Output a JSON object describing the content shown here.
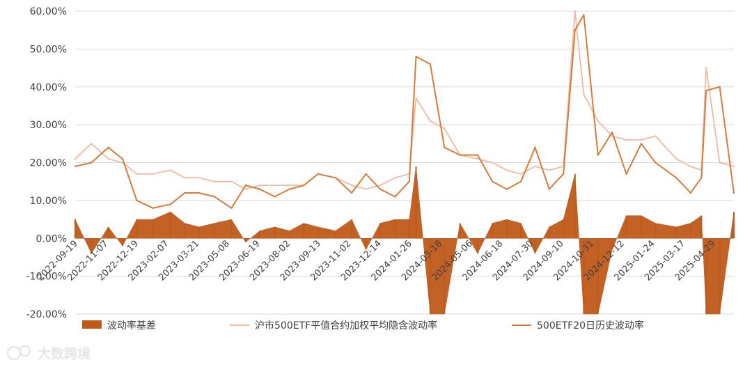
{
  "chart_data": {
    "type": "line",
    "title": "",
    "ylim": [
      -0.2,
      0.6
    ],
    "y_ticks": [
      "-20.00%",
      "-10.00%",
      "0.00%",
      "10.00%",
      "20.00%",
      "30.00%",
      "40.00%",
      "50.00%",
      "60.00%"
    ],
    "y_tick_values": [
      -0.2,
      -0.1,
      0.0,
      0.1,
      0.2,
      0.3,
      0.4,
      0.5,
      0.6
    ],
    "grid": "horizontal",
    "legend": "bottom",
    "x_tick_labels": [
      "2022-09-19",
      "2022-11-07",
      "2022-12-19",
      "2023-02-07",
      "2023-03-21",
      "2023-05-08",
      "2023-06-19",
      "2023-08-02",
      "2023-09-13",
      "2023-11-02",
      "2023-12-14",
      "2024-01-26",
      "2024-03-18",
      "2024-05-06",
      "2024-06-18",
      "2024-07-30",
      "2024-09-10",
      "2024-10-31",
      "2024-12-12",
      "2025-01-24",
      "2025-03-17",
      "2025-04-29"
    ],
    "x": [
      "2022-09-19",
      "2022-10-13",
      "2022-11-07",
      "2022-11-28",
      "2022-12-19",
      "2023-01-12",
      "2023-02-07",
      "2023-02-28",
      "2023-03-21",
      "2023-04-13",
      "2023-05-08",
      "2023-05-29",
      "2023-06-19",
      "2023-07-11",
      "2023-08-02",
      "2023-08-23",
      "2023-09-13",
      "2023-10-09",
      "2023-11-02",
      "2023-11-23",
      "2023-12-14",
      "2024-01-05",
      "2024-01-26",
      "2024-02-05",
      "2024-02-26",
      "2024-03-18",
      "2024-04-10",
      "2024-05-06",
      "2024-05-28",
      "2024-06-18",
      "2024-07-09",
      "2024-07-30",
      "2024-08-20",
      "2024-09-10",
      "2024-09-27",
      "2024-10-10",
      "2024-10-31",
      "2024-11-21",
      "2024-12-12",
      "2025-01-03",
      "2025-01-24",
      "2025-02-24",
      "2025-03-17",
      "2025-04-02",
      "2025-04-09",
      "2025-04-29",
      "2025-05-20"
    ],
    "series": [
      {
        "name": "波动率基差",
        "kind": "area",
        "color": "#c05a1a",
        "values": [
          0.05,
          -0.04,
          0.03,
          -0.02,
          0.05,
          0.05,
          0.07,
          0.04,
          0.03,
          0.04,
          0.05,
          -0.01,
          0.02,
          0.03,
          0.02,
          0.04,
          0.03,
          0.02,
          0.05,
          -0.03,
          0.04,
          0.05,
          0.05,
          0.19,
          -0.2,
          -0.2,
          0.04,
          -0.04,
          0.04,
          0.05,
          0.04,
          -0.04,
          0.03,
          0.05,
          0.17,
          -0.2,
          -0.2,
          -0.03,
          0.06,
          0.06,
          0.04,
          0.03,
          0.04,
          0.06,
          -0.2,
          -0.2,
          0.07
        ]
      },
      {
        "name": "沪市500ETF平值合约加权平均隐含波动率",
        "kind": "line",
        "color": "#f2b9a2",
        "values": [
          0.21,
          0.25,
          0.21,
          0.2,
          0.17,
          0.17,
          0.18,
          0.16,
          0.16,
          0.15,
          0.15,
          0.13,
          0.14,
          0.14,
          0.14,
          0.14,
          0.17,
          0.16,
          0.14,
          0.13,
          0.14,
          0.16,
          0.17,
          0.37,
          0.31,
          0.29,
          0.22,
          0.21,
          0.2,
          0.18,
          0.17,
          0.19,
          0.18,
          0.19,
          0.6,
          0.38,
          0.31,
          0.27,
          0.26,
          0.26,
          0.27,
          0.21,
          0.19,
          0.18,
          0.45,
          0.2,
          0.19
        ]
      },
      {
        "name": "500ETF20日历史波动率",
        "kind": "line",
        "color": "#d97a3a",
        "values": [
          0.19,
          0.2,
          0.24,
          0.21,
          0.1,
          0.08,
          0.09,
          0.12,
          0.12,
          0.11,
          0.08,
          0.14,
          0.13,
          0.11,
          0.13,
          0.14,
          0.17,
          0.16,
          0.12,
          0.17,
          0.13,
          0.11,
          0.15,
          0.48,
          0.46,
          0.24,
          0.22,
          0.22,
          0.15,
          0.13,
          0.15,
          0.24,
          0.13,
          0.17,
          0.55,
          0.59,
          0.22,
          0.28,
          0.17,
          0.25,
          0.2,
          0.16,
          0.12,
          0.16,
          0.39,
          0.4,
          0.12
        ]
      }
    ]
  },
  "watermark": "大数跨境"
}
